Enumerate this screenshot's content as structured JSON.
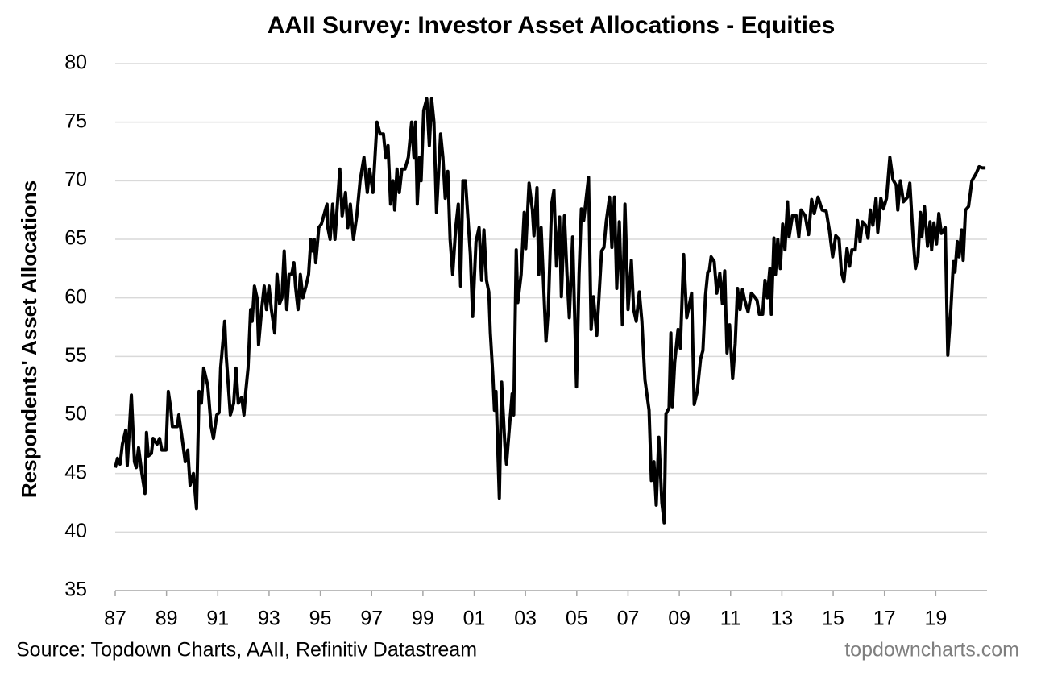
{
  "chart_data": {
    "type": "line",
    "title": "AAII Survey: Investor Asset Allocations - Equities",
    "y_label": "Respondents' Asset Allocations",
    "source": "Source: Topdown Charts, AAII, Refinitiv Datastream",
    "watermark": "topdowncharts.com",
    "color": "#000000",
    "grid": true,
    "xlim": [
      1987,
      2021
    ],
    "xticks": [
      {
        "value": 1987,
        "label": "87"
      },
      {
        "value": 1989,
        "label": "89"
      },
      {
        "value": 1991,
        "label": "91"
      },
      {
        "value": 1993,
        "label": "93"
      },
      {
        "value": 1995,
        "label": "95"
      },
      {
        "value": 1997,
        "label": "97"
      },
      {
        "value": 1999,
        "label": "99"
      },
      {
        "value": 2001,
        "label": "01"
      },
      {
        "value": 2003,
        "label": "03"
      },
      {
        "value": 2005,
        "label": "05"
      },
      {
        "value": 2007,
        "label": "07"
      },
      {
        "value": 2009,
        "label": "09"
      },
      {
        "value": 2011,
        "label": "11"
      },
      {
        "value": 2013,
        "label": "13"
      },
      {
        "value": 2015,
        "label": "15"
      },
      {
        "value": 2017,
        "label": "17"
      },
      {
        "value": 2019,
        "label": "19"
      }
    ],
    "ylim": [
      35,
      80
    ],
    "yticks": [
      35,
      40,
      45,
      50,
      55,
      60,
      65,
      70,
      75,
      80
    ],
    "x": [
      1987.0,
      1987.09,
      1987.19,
      1987.28,
      1987.41,
      1987.47,
      1987.63,
      1987.75,
      1987.82,
      1987.91,
      1988.04,
      1988.16,
      1988.22,
      1988.29,
      1988.41,
      1988.48,
      1988.63,
      1988.73,
      1988.82,
      1988.98,
      1989.07,
      1989.17,
      1989.23,
      1989.42,
      1989.48,
      1989.61,
      1989.73,
      1989.83,
      1989.92,
      1990.05,
      1990.17,
      1990.27,
      1990.36,
      1990.45,
      1990.61,
      1990.74,
      1990.83,
      1990.96,
      1991.05,
      1991.11,
      1991.27,
      1991.33,
      1991.49,
      1991.62,
      1991.71,
      1991.8,
      1991.93,
      1992.02,
      1992.09,
      1992.18,
      1992.28,
      1992.34,
      1992.43,
      1992.53,
      1992.59,
      1992.71,
      1992.81,
      1992.9,
      1993.0,
      1993.09,
      1993.22,
      1993.31,
      1993.41,
      1993.5,
      1993.59,
      1993.69,
      1993.78,
      1993.88,
      1993.97,
      1994.03,
      1994.13,
      1994.22,
      1994.32,
      1994.44,
      1994.54,
      1994.63,
      1994.69,
      1994.76,
      1994.82,
      1994.94,
      1995.04,
      1995.13,
      1995.26,
      1995.29,
      1995.38,
      1995.48,
      1995.57,
      1995.76,
      1995.85,
      1995.98,
      1996.07,
      1996.17,
      1996.29,
      1996.42,
      1996.55,
      1996.7,
      1996.83,
      1996.92,
      1997.05,
      1997.21,
      1997.33,
      1997.46,
      1997.55,
      1997.64,
      1997.74,
      1997.83,
      1997.9,
      1997.99,
      1998.08,
      1998.18,
      1998.3,
      1998.43,
      1998.56,
      1998.65,
      1998.71,
      1998.78,
      1998.87,
      1998.93,
      1999.03,
      1999.15,
      1999.25,
      1999.34,
      1999.43,
      1999.53,
      1999.69,
      1999.78,
      1999.87,
      1999.97,
      2000.06,
      2000.16,
      2000.28,
      2000.38,
      2000.47,
      2000.56,
      2000.66,
      2000.75,
      2000.85,
      2000.94,
      2001.07,
      2001.19,
      2001.29,
      2001.38,
      2001.48,
      2001.57,
      2001.63,
      2001.73,
      2001.79,
      2001.85,
      2001.98,
      2002.07,
      2002.2,
      2002.26,
      2002.35,
      2002.48,
      2002.54,
      2002.64,
      2002.7,
      2002.83,
      2002.95,
      2003.01,
      2003.14,
      2003.27,
      2003.33,
      2003.45,
      2003.52,
      2003.61,
      2003.8,
      2003.89,
      2004.02,
      2004.11,
      2004.21,
      2004.33,
      2004.4,
      2004.52,
      2004.62,
      2004.71,
      2004.84,
      2004.9,
      2004.99,
      2005.09,
      2005.18,
      2005.27,
      2005.46,
      2005.56,
      2005.65,
      2005.78,
      2005.97,
      2006.06,
      2006.15,
      2006.28,
      2006.37,
      2006.47,
      2006.56,
      2006.66,
      2006.78,
      2006.88,
      2007.0,
      2007.13,
      2007.22,
      2007.32,
      2007.44,
      2007.54,
      2007.66,
      2007.82,
      2007.91,
      2008.01,
      2008.1,
      2008.2,
      2008.32,
      2008.41,
      2008.48,
      2008.6,
      2008.67,
      2008.73,
      2008.82,
      2008.95,
      2009.04,
      2009.17,
      2009.29,
      2009.39,
      2009.48,
      2009.58,
      2009.7,
      2009.83,
      2009.92,
      2010.02,
      2010.11,
      2010.17,
      2010.24,
      2010.36,
      2010.46,
      2010.58,
      2010.68,
      2010.77,
      2010.86,
      2010.96,
      2011.08,
      2011.18,
      2011.27,
      2011.37,
      2011.46,
      2011.55,
      2011.68,
      2011.81,
      2011.93,
      2012.03,
      2012.12,
      2012.25,
      2012.34,
      2012.43,
      2012.53,
      2012.59,
      2012.69,
      2012.75,
      2012.84,
      2012.94,
      2013.03,
      2013.12,
      2013.22,
      2013.28,
      2013.41,
      2013.56,
      2013.66,
      2013.75,
      2013.91,
      2014.04,
      2014.16,
      2014.26,
      2014.41,
      2014.57,
      2014.73,
      2014.85,
      2014.98,
      2015.1,
      2015.23,
      2015.32,
      2015.42,
      2015.54,
      2015.64,
      2015.73,
      2015.86,
      2015.95,
      2016.05,
      2016.14,
      2016.26,
      2016.36,
      2016.45,
      2016.55,
      2016.67,
      2016.74,
      2016.86,
      2016.96,
      2017.08,
      2017.21,
      2017.33,
      2017.46,
      2017.52,
      2017.62,
      2017.74,
      2017.9,
      2017.99,
      2018.12,
      2018.21,
      2018.31,
      2018.4,
      2018.46,
      2018.56,
      2018.68,
      2018.78,
      2018.84,
      2018.93,
      2019.03,
      2019.12,
      2019.22,
      2019.37,
      2019.47,
      2019.59,
      2019.69,
      2019.75,
      2019.84,
      2019.91,
      2020.01,
      2020.07,
      2020.16,
      2020.28,
      2020.41,
      2020.57,
      2020.69,
      2020.82,
      2020.94
    ],
    "values": [
      45.5,
      46.3,
      45.8,
      47.5,
      48.7,
      45.7,
      51.7,
      46,
      45.5,
      47.2,
      45,
      43.3,
      48.5,
      46.5,
      46.7,
      48,
      47.5,
      48,
      47,
      47,
      52,
      50.5,
      49,
      49,
      50,
      48,
      46,
      47,
      44,
      45,
      42,
      52,
      51,
      54,
      52.5,
      49,
      48,
      50,
      50.2,
      54,
      58,
      55,
      50,
      51,
      54,
      51,
      51.5,
      50,
      52,
      54,
      59,
      58,
      61,
      60,
      56,
      59,
      61,
      59,
      61,
      59,
      57,
      62,
      59.5,
      60,
      64,
      59,
      62,
      62,
      63,
      61,
      59,
      62,
      60,
      61,
      62,
      65,
      64,
      65,
      63,
      66,
      66.3,
      67,
      68,
      66,
      65,
      68,
      65,
      71,
      67,
      69,
      66,
      68,
      65,
      67,
      70,
      72,
      69,
      71,
      69,
      75,
      74,
      74,
      72,
      73,
      68,
      70,
      67.5,
      71,
      69,
      71,
      71,
      72,
      75,
      72,
      75,
      68,
      72,
      70,
      76,
      77,
      73,
      77,
      75,
      67.3,
      74,
      72,
      68.5,
      70.8,
      65,
      62,
      66,
      68,
      61,
      70,
      70,
      67,
      63.7,
      58.4,
      64.8,
      66,
      61.5,
      65.8,
      61.5,
      60.5,
      57,
      53.3,
      50.4,
      52,
      42.9,
      52.8,
      47.3,
      45.8,
      48.3,
      51.8,
      50,
      64.1,
      59.6,
      62,
      67.3,
      64.2,
      69.8,
      67.5,
      65.3,
      69.4,
      62,
      66,
      56.3,
      59,
      68,
      69.2,
      62.7,
      66.9,
      60.1,
      67,
      62,
      58.3,
      65.2,
      60,
      52.4,
      62,
      67.6,
      66.6,
      70.3,
      57.3,
      60.1,
      56.8,
      64,
      64.3,
      66.5,
      68.6,
      64.3,
      68.6,
      60.8,
      66.5,
      57.7,
      68,
      59,
      63.2,
      59,
      58,
      60.5,
      58,
      53,
      50.4,
      44.4,
      46,
      42.3,
      48.1,
      42.5,
      40.8,
      50.1,
      50.6,
      57,
      50.7,
      54.5,
      57.3,
      55.7,
      63.7,
      58.3,
      59.4,
      60.4,
      50.9,
      52,
      54.8,
      55.5,
      60.2,
      62.2,
      62.3,
      63.5,
      63.1,
      60.4,
      62.1,
      59.5,
      62.3,
      55.3,
      57.7,
      53.1,
      56.1,
      60.8,
      59,
      60.7,
      59.8,
      58.8,
      60.4,
      60.1,
      59.8,
      58.6,
      58.6,
      61.5,
      60,
      62.5,
      58.6,
      65.1,
      62,
      65,
      62.5,
      66.3,
      64.1,
      68.2,
      65.2,
      67,
      67,
      65.2,
      67.5,
      67,
      65.4,
      68.4,
      67.2,
      68.6,
      67.5,
      67.4,
      65.8,
      63.5,
      65.3,
      65,
      62.2,
      61.4,
      64.2,
      62.7,
      64.1,
      64.1,
      66.6,
      64.8,
      66.5,
      66.2,
      65.1,
      67.5,
      66.2,
      68.5,
      65.6,
      68.5,
      67.6,
      68.5,
      72,
      70.1,
      69.6,
      67.5,
      70,
      68.2,
      68.6,
      69.8,
      65,
      62.5,
      63.5,
      67.3,
      65.2,
      67.8,
      64.4,
      66.5,
      64.1,
      66.4,
      64.6,
      67.2,
      65.5,
      66,
      55.1,
      59,
      63.1,
      62.2,
      64.8,
      63.5,
      65.8,
      63.2,
      67.5,
      67.8,
      70,
      70.6,
      71.2,
      71.1,
      71.1
    ]
  }
}
